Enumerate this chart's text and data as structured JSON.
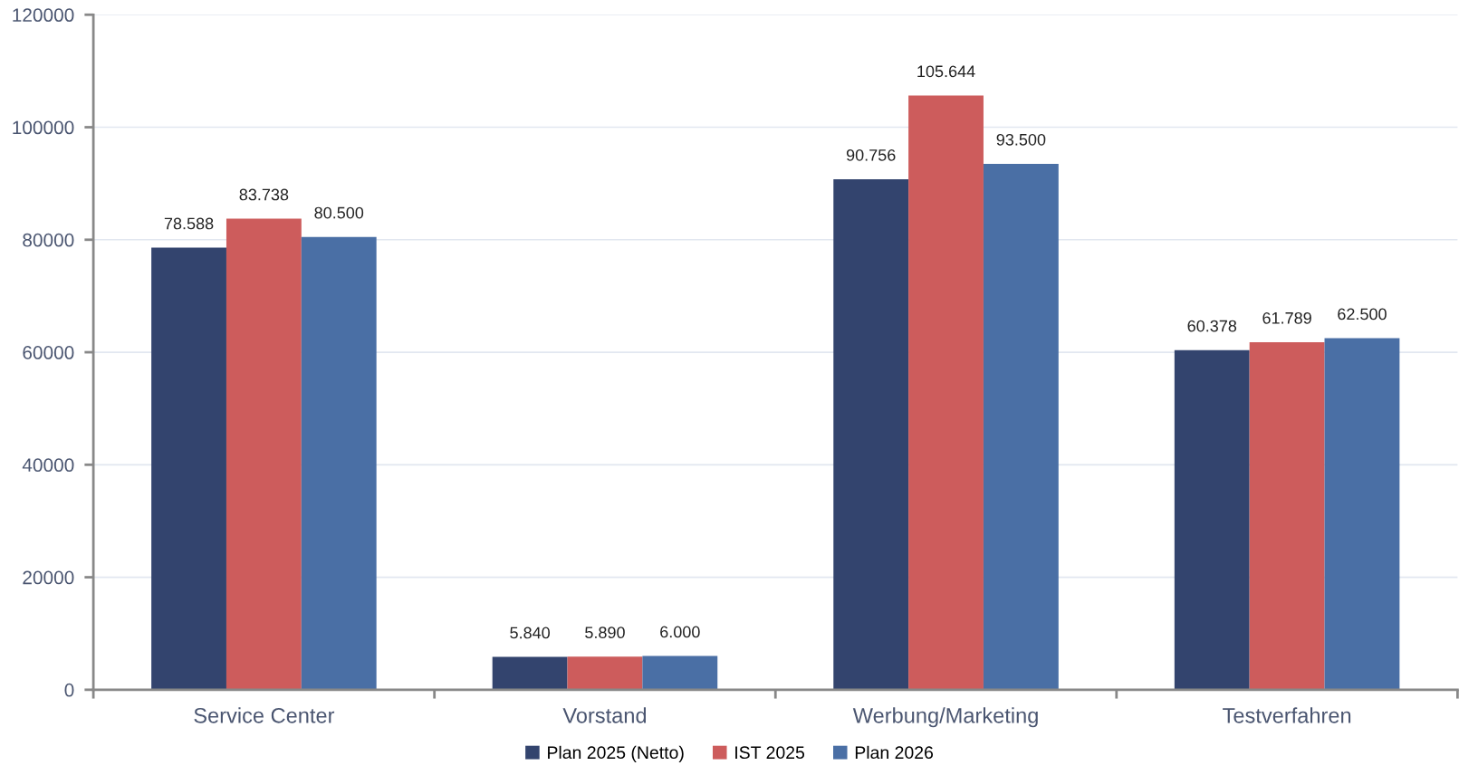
{
  "chart_data": {
    "type": "bar",
    "categories": [
      "Service Center",
      "Vorstand",
      "Werbung/Marketing",
      "Testverfahren"
    ],
    "series": [
      {
        "name": "Plan 2025 (Netto)",
        "color": "#33446e",
        "values": [
          78588,
          5840,
          90756,
          60378
        ],
        "value_labels": [
          "78.588",
          "5.840",
          "90.756",
          "60.378"
        ]
      },
      {
        "name": "IST 2025",
        "color": "#cd5c5c",
        "values": [
          83738,
          5890,
          105644,
          61789
        ],
        "value_labels": [
          "83.738",
          "5.890",
          "105.644",
          "61.789"
        ]
      },
      {
        "name": "Plan 2026",
        "color": "#4a6fa5",
        "values": [
          80500,
          6000,
          93500,
          62500
        ],
        "value_labels": [
          "80.500",
          "6.000",
          "93.500",
          "62.500"
        ]
      }
    ],
    "ylim": [
      0,
      120000
    ],
    "yticks": [
      0,
      20000,
      40000,
      60000,
      80000,
      100000,
      120000
    ],
    "grid": "y",
    "legend": "bottom"
  }
}
